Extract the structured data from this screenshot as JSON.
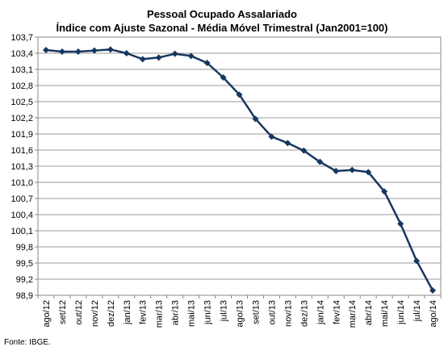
{
  "chart_data": {
    "type": "line",
    "title": "Pessoal Ocupado Assalariado",
    "subtitle": "Índice com Ajuste Sazonal - Média Móvel Trimestral (Jan2001=100)",
    "xlabel": "",
    "ylabel": "",
    "ylim": [
      98.9,
      103.7
    ],
    "yticks": [
      "103,7",
      "103,4",
      "103,1",
      "102,8",
      "102,5",
      "102,2",
      "101,9",
      "101,6",
      "101,3",
      "101,0",
      "100,7",
      "100,4",
      "100,1",
      "99,8",
      "99,5",
      "99,2",
      "98,9"
    ],
    "grid": true,
    "legend": "none",
    "categories": [
      "ago/12",
      "set/12",
      "out/12",
      "nov/12",
      "dez/12",
      "jan/13",
      "fev/13",
      "mar/13",
      "abr/13",
      "mai/13",
      "jun/13",
      "jul/13",
      "ago/13",
      "set/13",
      "out/13",
      "nov/13",
      "dez/13",
      "jan/14",
      "fev/14",
      "mar/14",
      "abr/14",
      "mai/14",
      "jun/14",
      "jul/14",
      "ago/14"
    ],
    "series": [
      {
        "values": [
          103.46,
          103.43,
          103.43,
          103.45,
          103.47,
          103.4,
          103.29,
          103.32,
          103.39,
          103.35,
          103.22,
          102.95,
          102.63,
          102.18,
          101.85,
          101.73,
          101.59,
          101.38,
          101.21,
          101.23,
          101.19,
          100.83,
          100.23,
          99.54,
          98.99
        ],
        "color": "#17375e"
      }
    ]
  },
  "footer": {
    "source": "Fonte: IBGE."
  }
}
